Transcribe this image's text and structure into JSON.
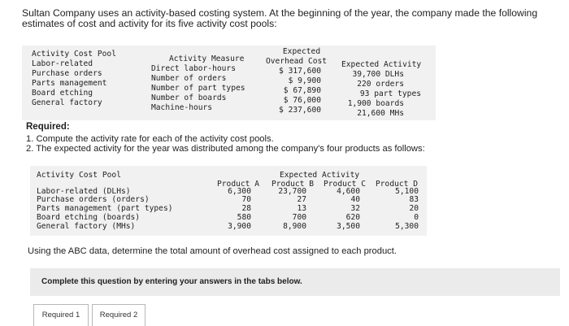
{
  "intro": "Sultan Company uses an activity-based costing system. At the beginning of the year, the company made the following estimates of cost and activity for its five activity cost pools:",
  "table1": {
    "headers": {
      "pool": "Activity Cost Pool",
      "measure": "Activity Measure",
      "overhead_1": "Expected",
      "overhead_2": "Overhead Cost",
      "activity": "Expected Activity"
    },
    "rows": [
      {
        "pool": "Labor-related",
        "measure": "Direct labor-hours",
        "cost": "$ 317,600",
        "activity": "39,700 DLHs"
      },
      {
        "pool": "Purchase orders",
        "measure": "Number of orders",
        "cost": "$ 9,900",
        "activity": "220 orders"
      },
      {
        "pool": "Parts management",
        "measure": "Number of part types",
        "cost": "$ 67,890",
        "activity": "93 part types"
      },
      {
        "pool": "Board etching",
        "measure": "Number of boards",
        "cost": "$ 76,000",
        "activity": "1,900 boards"
      },
      {
        "pool": "General factory",
        "measure": "Machine-hours",
        "cost": "$ 237,600",
        "activity": "21,600 MHs"
      }
    ]
  },
  "required_label": "Required:",
  "step1": "1. Compute the activity rate for each of the activity cost pools.",
  "step2": "2. The expected activity for the year was distributed among the company's four products as follows:",
  "table2": {
    "pool_header": "Activity Cost Pool",
    "group_header": "Expected Activity",
    "products": [
      "Product A",
      "Product B",
      "Product C",
      "Product D"
    ],
    "rows": [
      {
        "pool": "Labor-related (DLHs)",
        "values": [
          "6,300",
          "23,700",
          "4,600",
          "5,100"
        ]
      },
      {
        "pool": "Purchase orders (orders)",
        "values": [
          "70",
          "27",
          "40",
          "83"
        ]
      },
      {
        "pool": "Parts management (part types)",
        "values": [
          "28",
          "13",
          "32",
          "20"
        ]
      },
      {
        "pool": "Board etching (boards)",
        "values": [
          "580",
          "700",
          "620",
          "0"
        ]
      },
      {
        "pool": "General factory (MHs)",
        "values": [
          "3,900",
          "8,900",
          "3,500",
          "5,300"
        ]
      }
    ]
  },
  "question": "Using the ABC data, determine the total amount of overhead cost assigned to each product.",
  "panel_text": "Complete this question by entering your answers in the tabs below.",
  "tabs": [
    "Required 1",
    "Required 2"
  ]
}
